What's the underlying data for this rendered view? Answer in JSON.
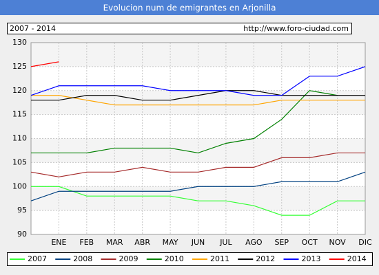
{
  "chart_data": {
    "type": "line",
    "title": "Evolucion num de emigrantes en Arjonilla",
    "subtitle": "2007 - 2014",
    "source": "http://www.foro-ciudad.com",
    "categories": [
      null,
      "ENE",
      "FEB",
      "MAR",
      "ABR",
      "MAY",
      "JUN",
      "JUL",
      "AGO",
      "SEP",
      "OCT",
      "NOV",
      "DIC"
    ],
    "series": [
      {
        "name": "2007",
        "color": "#33ff33",
        "values": [
          100,
          100,
          98,
          98,
          98,
          98,
          97,
          97,
          96,
          94,
          94,
          97,
          97
        ]
      },
      {
        "name": "2008",
        "color": "#004080",
        "values": [
          97,
          99,
          99,
          99,
          99,
          99,
          100,
          100,
          100,
          101,
          101,
          101,
          103
        ]
      },
      {
        "name": "2009",
        "color": "#a52a2a",
        "values": [
          103,
          102,
          103,
          103,
          104,
          103,
          103,
          104,
          104,
          106,
          106,
          107,
          107
        ]
      },
      {
        "name": "2010",
        "color": "#008000",
        "values": [
          107,
          107,
          107,
          108,
          108,
          108,
          107,
          109,
          110,
          114,
          120,
          119,
          null
        ]
      },
      {
        "name": "2011",
        "color": "#ffa500",
        "values": [
          119,
          119,
          118,
          117,
          117,
          117,
          117,
          117,
          117,
          118,
          118,
          118,
          118
        ]
      },
      {
        "name": "2012",
        "color": "#000000",
        "values": [
          118,
          118,
          119,
          119,
          118,
          118,
          119,
          120,
          120,
          119,
          119,
          119,
          119
        ]
      },
      {
        "name": "2013",
        "color": "#0000ff",
        "values": [
          119,
          121,
          121,
          121,
          121,
          120,
          120,
          120,
          119,
          119,
          123,
          123,
          125
        ]
      },
      {
        "name": "2014",
        "color": "#ff0000",
        "values": [
          125,
          126,
          null,
          null,
          null,
          null,
          null,
          null,
          null,
          null,
          null,
          null,
          null
        ]
      }
    ],
    "ylim": [
      90,
      130
    ],
    "yticks": [
      90,
      95,
      100,
      105,
      110,
      115,
      120,
      125,
      130
    ],
    "grid": true
  }
}
